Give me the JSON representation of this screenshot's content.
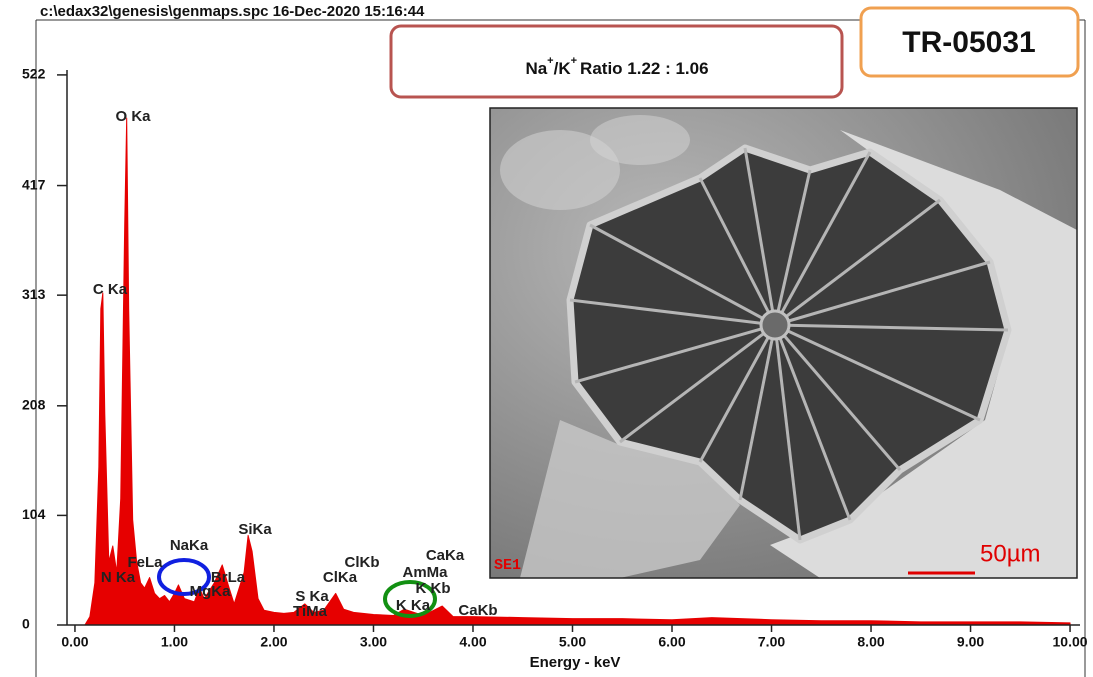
{
  "header": "c:\\edax32\\genesis\\genmaps.spc  16-Dec-2020 15:16:44",
  "ratio_box": {
    "parts": [
      "Na",
      "+",
      "/K",
      "+",
      "Ratio 1.22 : 1.06"
    ]
  },
  "sample_id": "TR-05031",
  "inset": {
    "label": "SE1",
    "scale_bar": "50µm"
  },
  "chart_data": {
    "type": "area",
    "x_label": "Energy - keV",
    "color": "#e60000",
    "xlim": [
      -0.1,
      10.1
    ],
    "xticks": [
      {
        "value": 0,
        "label": "0.00"
      },
      {
        "value": 1,
        "label": "1.00"
      },
      {
        "value": 2,
        "label": "2.00"
      },
      {
        "value": 3,
        "label": "3.00"
      },
      {
        "value": 4,
        "label": "4.00"
      },
      {
        "value": 5,
        "label": "5.00"
      },
      {
        "value": 6,
        "label": "6.00"
      },
      {
        "value": 7,
        "label": "7.00"
      },
      {
        "value": 8,
        "label": "8.00"
      },
      {
        "value": 9,
        "label": "9.00"
      },
      {
        "value": 10,
        "label": "10.00"
      }
    ],
    "ylim": [
      0,
      576
    ],
    "yticks": [
      0,
      104,
      208,
      313,
      417,
      522
    ],
    "x": [
      0.1,
      0.15,
      0.2,
      0.24,
      0.26,
      0.28,
      0.3,
      0.34,
      0.38,
      0.42,
      0.46,
      0.5,
      0.52,
      0.54,
      0.58,
      0.62,
      0.66,
      0.7,
      0.75,
      0.8,
      0.85,
      0.9,
      0.95,
      1.0,
      1.04,
      1.1,
      1.2,
      1.25,
      1.3,
      1.4,
      1.48,
      1.55,
      1.6,
      1.7,
      1.74,
      1.78,
      1.84,
      1.9,
      2.0,
      2.1,
      2.2,
      2.31,
      2.4,
      2.5,
      2.62,
      2.7,
      2.8,
      3.0,
      3.2,
      3.31,
      3.5,
      3.69,
      3.8,
      4.0,
      4.5,
      5.0,
      5.5,
      6.0,
      6.4,
      7.0,
      7.5,
      8.0,
      8.5,
      9.0,
      9.5,
      10.0
    ],
    "values": [
      0,
      8,
      40,
      150,
      300,
      315,
      200,
      60,
      75,
      50,
      120,
      380,
      481,
      300,
      100,
      60,
      40,
      35,
      45,
      30,
      25,
      28,
      22,
      30,
      38,
      25,
      22,
      35,
      25,
      40,
      57,
      35,
      20,
      50,
      85,
      70,
      25,
      14,
      12,
      11,
      12,
      20,
      12,
      14,
      30,
      15,
      12,
      10,
      9,
      15,
      9,
      18,
      8,
      8,
      7,
      6,
      6,
      5,
      7,
      5,
      4,
      4,
      3,
      3,
      3,
      2
    ],
    "annotations": [
      "O Ka",
      "C Ka",
      "N Ka",
      "FeLa",
      "NaKa",
      "MgKa",
      "BrLa",
      "SiKa",
      "S Ka",
      "TiMa",
      "ClKa",
      "ClKb",
      "AmMa",
      "CaKa",
      "K Kb",
      "K Ka",
      "CaKb"
    ]
  }
}
